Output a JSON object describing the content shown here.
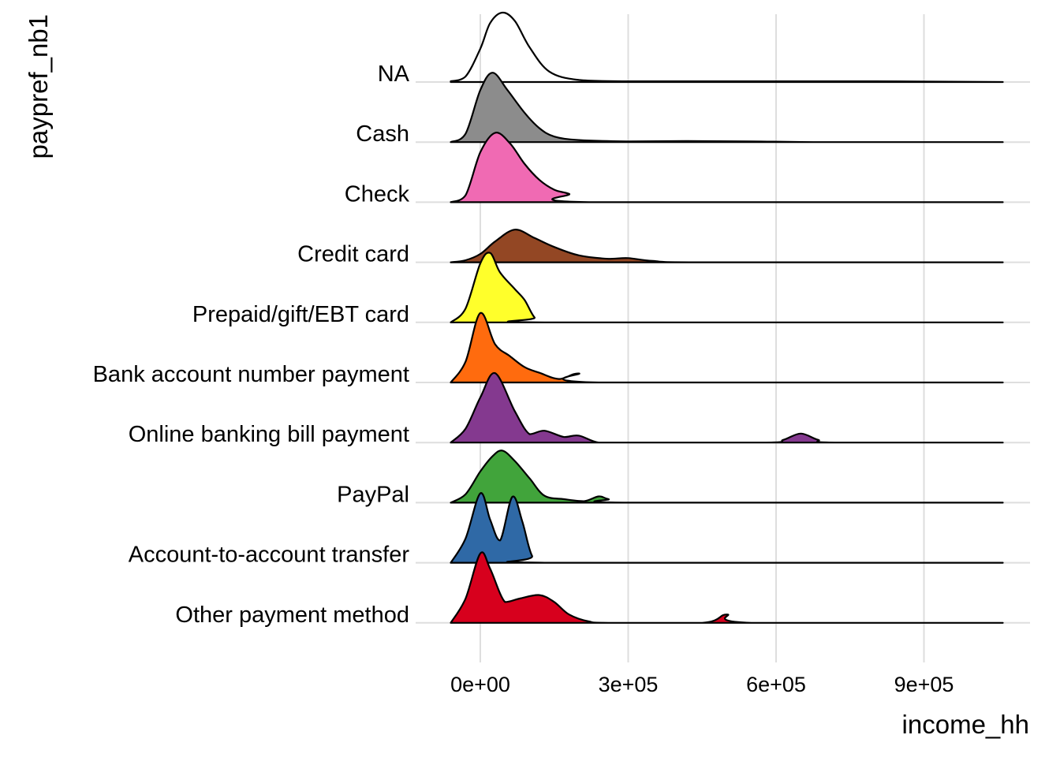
{
  "chart_data": {
    "type": "ridgeline",
    "xlabel": "income_hh",
    "ylabel": "paypref_nb1",
    "x_ticks": [
      0,
      300000,
      600000,
      900000
    ],
    "x_tick_labels": [
      "0e+00",
      "3e+05",
      "6e+05",
      "9e+05"
    ],
    "xlim": [
      -60000,
      1060000
    ],
    "density_peak_scale": 1.0,
    "grid": "on",
    "legend": "none",
    "series": [
      {
        "name": "NA",
        "fill": "none",
        "x": [
          -60000,
          -30000,
          0,
          20000,
          45000,
          70000,
          100000,
          140000,
          200000,
          300000,
          500000,
          800000,
          1060000
        ],
        "density": [
          0.01,
          0.08,
          0.48,
          0.85,
          1.0,
          0.88,
          0.5,
          0.15,
          0.03,
          0.01,
          0.01,
          0.01,
          0.0
        ]
      },
      {
        "name": "Cash",
        "fill": "#8c8c8c",
        "x": [
          -60000,
          -30000,
          0,
          25000,
          55000,
          90000,
          120000,
          150000,
          200000,
          300000,
          420000,
          550000,
          700000,
          1060000
        ],
        "density": [
          0.0,
          0.12,
          0.75,
          1.0,
          0.75,
          0.42,
          0.2,
          0.08,
          0.03,
          0.01,
          0.015,
          0.01,
          0.0,
          0.0
        ]
      },
      {
        "name": "Check",
        "fill": "#f06ab3",
        "x": [
          -60000,
          -30000,
          0,
          30000,
          60000,
          90000,
          120000,
          150000,
          180000,
          220000,
          1060000
        ],
        "density": [
          0.0,
          0.1,
          0.72,
          1.0,
          0.85,
          0.55,
          0.32,
          0.18,
          0.12,
          0.0,
          0.0
        ]
      },
      {
        "name": "Credit card",
        "fill": "#934724",
        "x": [
          -60000,
          -30000,
          0,
          30000,
          70000,
          110000,
          150000,
          200000,
          260000,
          300000,
          350000,
          450000,
          1060000
        ],
        "density": [
          0.0,
          0.03,
          0.12,
          0.3,
          0.47,
          0.35,
          0.22,
          0.1,
          0.05,
          0.06,
          0.02,
          0.0,
          0.0
        ]
      },
      {
        "name": "Prepaid/gift/EBT card",
        "fill": "#ffff2b",
        "x": [
          -60000,
          -30000,
          0,
          20000,
          40000,
          70000,
          90000,
          110000,
          130000,
          1060000
        ],
        "density": [
          0.0,
          0.2,
          0.85,
          1.0,
          0.72,
          0.48,
          0.32,
          0.07,
          0.0,
          0.0
        ]
      },
      {
        "name": "Bank account number payment",
        "fill": "#ff6b0e",
        "x": [
          -60000,
          -30000,
          0,
          30000,
          60000,
          90000,
          120000,
          160000,
          200000,
          240000,
          1060000
        ],
        "density": [
          0.0,
          0.3,
          1.0,
          0.55,
          0.38,
          0.22,
          0.14,
          0.05,
          0.13,
          0.0,
          0.0
        ]
      },
      {
        "name": "Online banking bill payment",
        "fill": "#84398f",
        "x": [
          -60000,
          -30000,
          0,
          30000,
          70000,
          100000,
          130000,
          170000,
          200000,
          240000,
          300000,
          580000,
          615000,
          650000,
          685000,
          720000,
          1060000
        ],
        "density": [
          0.0,
          0.2,
          0.65,
          1.0,
          0.45,
          0.12,
          0.17,
          0.08,
          0.1,
          0.0,
          0.0,
          0.0,
          0.04,
          0.13,
          0.04,
          0.0,
          0.0
        ]
      },
      {
        "name": "PayPal",
        "fill": "#41a43b",
        "x": [
          -60000,
          -30000,
          0,
          25000,
          45000,
          70000,
          100000,
          130000,
          170000,
          210000,
          240000,
          260000,
          300000,
          1060000
        ],
        "density": [
          0.0,
          0.12,
          0.45,
          0.67,
          0.75,
          0.6,
          0.35,
          0.1,
          0.05,
          0.02,
          0.09,
          0.05,
          0.0,
          0.0
        ]
      },
      {
        "name": "Account-to-account transfer",
        "fill": "#2f69a6",
        "x": [
          -60000,
          -30000,
          0,
          20000,
          40000,
          65000,
          85000,
          105000,
          130000,
          1060000
        ],
        "density": [
          0.0,
          0.35,
          1.0,
          0.62,
          0.32,
          0.95,
          0.6,
          0.1,
          0.0,
          0.0
        ]
      },
      {
        "name": "Other payment method",
        "fill": "#d7001d",
        "x": [
          -60000,
          -30000,
          0,
          20000,
          50000,
          80000,
          120000,
          150000,
          180000,
          220000,
          260000,
          450000,
          500000,
          550000,
          1060000
        ],
        "density": [
          0.0,
          0.35,
          1.0,
          0.78,
          0.3,
          0.35,
          0.4,
          0.3,
          0.12,
          0.02,
          0.0,
          0.0,
          0.12,
          0.0,
          0.0
        ]
      }
    ]
  }
}
